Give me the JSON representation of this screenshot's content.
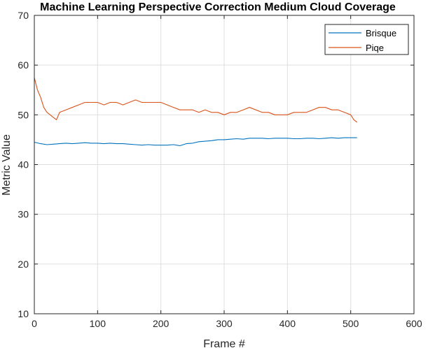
{
  "chart_data": {
    "type": "line",
    "title": "Machine Learning Perspective Correction Medium Cloud Coverage",
    "xlabel": "Frame #",
    "ylabel": "Metric Value",
    "xlim": [
      0,
      600
    ],
    "ylim": [
      10,
      70
    ],
    "xticks": [
      0,
      100,
      200,
      300,
      400,
      500,
      600
    ],
    "yticks": [
      10,
      20,
      30,
      40,
      50,
      60,
      70
    ],
    "grid": true,
    "legend_position": "top-right",
    "series": [
      {
        "name": "Brisque",
        "color": "#0072bd",
        "x": [
          0,
          10,
          20,
          30,
          40,
          50,
          60,
          70,
          80,
          90,
          100,
          110,
          120,
          130,
          140,
          150,
          160,
          170,
          180,
          190,
          200,
          210,
          220,
          230,
          240,
          250,
          260,
          270,
          280,
          290,
          300,
          310,
          320,
          330,
          340,
          350,
          360,
          370,
          380,
          390,
          400,
          410,
          420,
          430,
          440,
          450,
          460,
          470,
          480,
          490,
          500,
          510
        ],
        "values": [
          44.5,
          44.2,
          44.0,
          44.1,
          44.2,
          44.3,
          44.2,
          44.3,
          44.4,
          44.3,
          44.3,
          44.2,
          44.3,
          44.2,
          44.2,
          44.1,
          44.0,
          43.9,
          44.0,
          43.9,
          43.9,
          43.9,
          44.0,
          43.8,
          44.2,
          44.3,
          44.6,
          44.7,
          44.8,
          45.0,
          45.0,
          45.1,
          45.2,
          45.1,
          45.3,
          45.3,
          45.3,
          45.2,
          45.3,
          45.3,
          45.3,
          45.2,
          45.2,
          45.3,
          45.3,
          45.2,
          45.3,
          45.4,
          45.3,
          45.4,
          45.4,
          45.4
        ]
      },
      {
        "name": "Piqe",
        "color": "#d95319",
        "x": [
          0,
          5,
          10,
          15,
          20,
          25,
          30,
          35,
          40,
          50,
          60,
          70,
          80,
          90,
          100,
          110,
          120,
          130,
          140,
          150,
          160,
          170,
          180,
          190,
          200,
          210,
          220,
          230,
          240,
          250,
          260,
          270,
          280,
          290,
          300,
          310,
          320,
          330,
          340,
          350,
          360,
          370,
          380,
          390,
          400,
          410,
          420,
          430,
          440,
          450,
          460,
          470,
          480,
          490,
          500,
          505,
          510
        ],
        "values": [
          57.5,
          55.0,
          53.5,
          51.5,
          50.5,
          50.0,
          49.5,
          49.0,
          50.5,
          51.0,
          51.5,
          52.0,
          52.5,
          52.5,
          52.5,
          52.0,
          52.5,
          52.5,
          52.0,
          52.5,
          53.0,
          52.5,
          52.5,
          52.5,
          52.5,
          52.0,
          51.5,
          51.0,
          51.0,
          51.0,
          50.5,
          51.0,
          50.5,
          50.5,
          50.0,
          50.5,
          50.5,
          51.0,
          51.5,
          51.0,
          50.5,
          50.5,
          50.0,
          50.0,
          50.0,
          50.5,
          50.5,
          50.5,
          51.0,
          51.5,
          51.5,
          51.0,
          51.0,
          50.5,
          50.0,
          49.0,
          48.5
        ]
      }
    ]
  }
}
